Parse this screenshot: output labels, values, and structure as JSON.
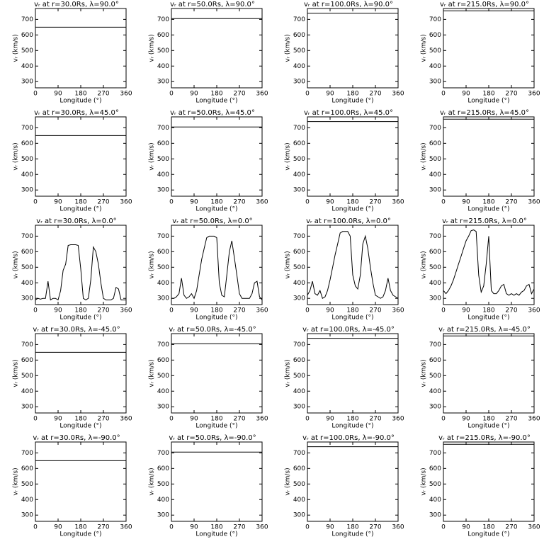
{
  "chart_data": [
    {
      "type": "line",
      "title": "vᵣ at r=30.0Rs,  λ=90.0°",
      "xlabel": "Longitude (°)",
      "ylabel": "vᵣ (km/s)",
      "x": [
        0,
        360
      ],
      "values": [
        650,
        650
      ],
      "color": "#000000",
      "xlim": [
        0,
        360
      ],
      "xticks": [
        0,
        90,
        180,
        270,
        360
      ],
      "ylim": [
        260,
        770
      ],
      "yticks": [
        300,
        400,
        500,
        600,
        700
      ]
    },
    {
      "type": "line",
      "title": "vᵣ at r=50.0Rs,  λ=90.0°",
      "xlabel": "Longitude (°)",
      "ylabel": "vᵣ (km/s)",
      "x": [
        0,
        360
      ],
      "values": [
        705,
        705
      ],
      "color": "#000000",
      "xlim": [
        0,
        360
      ],
      "xticks": [
        0,
        90,
        180,
        270,
        360
      ],
      "ylim": [
        260,
        770
      ],
      "yticks": [
        300,
        400,
        500,
        600,
        700
      ]
    },
    {
      "type": "line",
      "title": "vᵣ at r=100.0Rs,  λ=90.0°",
      "xlabel": "Longitude (°)",
      "ylabel": "vᵣ (km/s)",
      "x": [
        0,
        360
      ],
      "values": [
        740,
        740
      ],
      "color": "#000000",
      "xlim": [
        0,
        360
      ],
      "xticks": [
        0,
        90,
        180,
        270,
        360
      ],
      "ylim": [
        260,
        770
      ],
      "yticks": [
        300,
        400,
        500,
        600,
        700
      ]
    },
    {
      "type": "line",
      "title": "vᵣ at r=215.0Rs,  λ=90.0°",
      "xlabel": "Longitude (°)",
      "ylabel": "vᵣ (km/s)",
      "x": [
        0,
        360
      ],
      "values": [
        755,
        755
      ],
      "color": "#000000",
      "xlim": [
        0,
        360
      ],
      "xticks": [
        0,
        90,
        180,
        270,
        360
      ],
      "ylim": [
        260,
        770
      ],
      "yticks": [
        300,
        400,
        500,
        600,
        700
      ]
    },
    {
      "type": "line",
      "title": "vᵣ at r=30.0Rs,  λ=45.0°",
      "xlabel": "Longitude (°)",
      "ylabel": "vᵣ (km/s)",
      "x": [
        0,
        360
      ],
      "values": [
        650,
        650
      ],
      "color": "#000000",
      "xlim": [
        0,
        360
      ],
      "xticks": [
        0,
        90,
        180,
        270,
        360
      ],
      "ylim": [
        260,
        770
      ],
      "yticks": [
        300,
        400,
        500,
        600,
        700
      ]
    },
    {
      "type": "line",
      "title": "vᵣ at r=50.0Rs,  λ=45.0°",
      "xlabel": "Longitude (°)",
      "ylabel": "vᵣ (km/s)",
      "x": [
        0,
        360
      ],
      "values": [
        705,
        705
      ],
      "color": "#000000",
      "xlim": [
        0,
        360
      ],
      "xticks": [
        0,
        90,
        180,
        270,
        360
      ],
      "ylim": [
        260,
        770
      ],
      "yticks": [
        300,
        400,
        500,
        600,
        700
      ]
    },
    {
      "type": "line",
      "title": "vᵣ at r=100.0Rs,  λ=45.0°",
      "xlabel": "Longitude (°)",
      "ylabel": "vᵣ (km/s)",
      "x": [
        0,
        360
      ],
      "values": [
        740,
        740
      ],
      "color": "#000000",
      "xlim": [
        0,
        360
      ],
      "xticks": [
        0,
        90,
        180,
        270,
        360
      ],
      "ylim": [
        260,
        770
      ],
      "yticks": [
        300,
        400,
        500,
        600,
        700
      ]
    },
    {
      "type": "line",
      "title": "vᵣ at r=215.0Rs,  λ=45.0°",
      "xlabel": "Longitude (°)",
      "ylabel": "vᵣ (km/s)",
      "x": [
        0,
        360
      ],
      "values": [
        755,
        755
      ],
      "color": "#000000",
      "xlim": [
        0,
        360
      ],
      "xticks": [
        0,
        90,
        180,
        270,
        360
      ],
      "ylim": [
        260,
        770
      ],
      "yticks": [
        300,
        400,
        500,
        600,
        700
      ]
    },
    {
      "type": "line",
      "title": "vᵣ at r=30.0Rs,  λ=0.0°",
      "xlabel": "Longitude (°)",
      "ylabel": "vᵣ (km/s)",
      "x": [
        0,
        10,
        20,
        30,
        40,
        50,
        60,
        70,
        80,
        90,
        100,
        110,
        120,
        130,
        140,
        150,
        160,
        170,
        180,
        190,
        200,
        210,
        220,
        230,
        240,
        250,
        260,
        270,
        280,
        290,
        300,
        310,
        320,
        330,
        340,
        350,
        360
      ],
      "values": [
        290,
        300,
        295,
        300,
        300,
        410,
        290,
        300,
        300,
        290,
        350,
        480,
        520,
        640,
        645,
        645,
        645,
        640,
        490,
        300,
        290,
        300,
        420,
        630,
        600,
        520,
        400,
        300,
        290,
        290,
        290,
        300,
        370,
        360,
        290,
        290,
        290
      ],
      "color": "#000000",
      "xlim": [
        0,
        360
      ],
      "xticks": [
        0,
        90,
        180,
        270,
        360
      ],
      "ylim": [
        260,
        770
      ],
      "yticks": [
        300,
        400,
        500,
        600,
        700
      ]
    },
    {
      "type": "line",
      "title": "vᵣ at r=50.0Rs,  λ=0.0°",
      "xlabel": "Longitude (°)",
      "ylabel": "vᵣ (km/s)",
      "x": [
        0,
        10,
        20,
        30,
        40,
        50,
        60,
        70,
        80,
        90,
        100,
        110,
        120,
        130,
        140,
        150,
        160,
        170,
        180,
        190,
        200,
        210,
        220,
        230,
        240,
        250,
        260,
        270,
        280,
        290,
        300,
        310,
        320,
        330,
        340,
        350,
        360
      ],
      "values": [
        300,
        300,
        310,
        330,
        430,
        320,
        300,
        310,
        330,
        300,
        350,
        450,
        550,
        620,
        690,
        700,
        700,
        700,
        690,
        400,
        320,
        310,
        450,
        600,
        670,
        560,
        450,
        330,
        300,
        300,
        300,
        300,
        330,
        400,
        410,
        310,
        290
      ],
      "color": "#000000",
      "xlim": [
        0,
        360
      ],
      "xticks": [
        0,
        90,
        180,
        270,
        360
      ],
      "ylim": [
        260,
        770
      ],
      "yticks": [
        300,
        400,
        500,
        600,
        700
      ]
    },
    {
      "type": "line",
      "title": "vᵣ at r=100.0Rs,  λ=0.0°",
      "xlabel": "Longitude (°)",
      "ylabel": "vᵣ (km/s)",
      "x": [
        0,
        10,
        20,
        30,
        40,
        50,
        60,
        70,
        80,
        90,
        100,
        110,
        120,
        130,
        140,
        150,
        160,
        170,
        180,
        190,
        200,
        210,
        220,
        230,
        240,
        250,
        260,
        270,
        280,
        290,
        300,
        310,
        320,
        330,
        340,
        350,
        360
      ],
      "values": [
        320,
        350,
        410,
        330,
        320,
        350,
        300,
        310,
        350,
        420,
        500,
        580,
        650,
        720,
        730,
        730,
        730,
        700,
        450,
        380,
        360,
        450,
        650,
        700,
        620,
        500,
        400,
        320,
        310,
        300,
        310,
        350,
        430,
        350,
        320,
        310,
        300
      ],
      "color": "#000000",
      "xlim": [
        0,
        360
      ],
      "xticks": [
        0,
        90,
        180,
        270,
        360
      ],
      "ylim": [
        260,
        770
      ],
      "yticks": [
        300,
        400,
        500,
        600,
        700
      ]
    },
    {
      "type": "line",
      "title": "vᵣ at r=215.0Rs,  λ=0.0°",
      "xlabel": "Longitude (°)",
      "ylabel": "vᵣ (km/s)",
      "x": [
        0,
        10,
        20,
        30,
        40,
        50,
        60,
        70,
        80,
        90,
        100,
        110,
        120,
        130,
        140,
        150,
        160,
        170,
        180,
        190,
        200,
        210,
        220,
        230,
        240,
        250,
        260,
        270,
        280,
        290,
        300,
        310,
        320,
        330,
        340,
        350,
        360
      ],
      "values": [
        350,
        330,
        350,
        380,
        420,
        470,
        520,
        570,
        620,
        670,
        700,
        735,
        740,
        730,
        450,
        340,
        380,
        520,
        700,
        350,
        330,
        330,
        350,
        380,
        390,
        330,
        320,
        330,
        320,
        330,
        320,
        340,
        350,
        380,
        390,
        330,
        360
      ],
      "color": "#000000",
      "xlim": [
        0,
        360
      ],
      "xticks": [
        0,
        90,
        180,
        270,
        360
      ],
      "ylim": [
        260,
        770
      ],
      "yticks": [
        300,
        400,
        500,
        600,
        700
      ]
    },
    {
      "type": "line",
      "title": "vᵣ at r=30.0Rs,  λ=-45.0°",
      "xlabel": "Longitude (°)",
      "ylabel": "vᵣ (km/s)",
      "x": [
        0,
        360
      ],
      "values": [
        650,
        650
      ],
      "color": "#000000",
      "xlim": [
        0,
        360
      ],
      "xticks": [
        0,
        90,
        180,
        270,
        360
      ],
      "ylim": [
        260,
        770
      ],
      "yticks": [
        300,
        400,
        500,
        600,
        700
      ]
    },
    {
      "type": "line",
      "title": "vᵣ at r=50.0Rs,  λ=-45.0°",
      "xlabel": "Longitude (°)",
      "ylabel": "vᵣ (km/s)",
      "x": [
        0,
        360
      ],
      "values": [
        705,
        705
      ],
      "color": "#000000",
      "xlim": [
        0,
        360
      ],
      "xticks": [
        0,
        90,
        180,
        270,
        360
      ],
      "ylim": [
        260,
        770
      ],
      "yticks": [
        300,
        400,
        500,
        600,
        700
      ]
    },
    {
      "type": "line",
      "title": "vᵣ at r=100.0Rs,  λ=-45.0°",
      "xlabel": "Longitude (°)",
      "ylabel": "vᵣ (km/s)",
      "x": [
        0,
        360
      ],
      "values": [
        740,
        740
      ],
      "color": "#000000",
      "xlim": [
        0,
        360
      ],
      "xticks": [
        0,
        90,
        180,
        270,
        360
      ],
      "ylim": [
        260,
        770
      ],
      "yticks": [
        300,
        400,
        500,
        600,
        700
      ]
    },
    {
      "type": "line",
      "title": "vᵣ at r=215.0Rs,  λ=-45.0°",
      "xlabel": "Longitude (°)",
      "ylabel": "vᵣ (km/s)",
      "x": [
        0,
        360
      ],
      "values": [
        755,
        755
      ],
      "color": "#000000",
      "xlim": [
        0,
        360
      ],
      "xticks": [
        0,
        90,
        180,
        270,
        360
      ],
      "ylim": [
        260,
        770
      ],
      "yticks": [
        300,
        400,
        500,
        600,
        700
      ]
    },
    {
      "type": "line",
      "title": "vᵣ at r=30.0Rs,  λ=-90.0°",
      "xlabel": "Longitude (°)",
      "ylabel": "vᵣ (km/s)",
      "x": [
        0,
        360
      ],
      "values": [
        650,
        650
      ],
      "color": "#000000",
      "xlim": [
        0,
        360
      ],
      "xticks": [
        0,
        90,
        180,
        270,
        360
      ],
      "ylim": [
        260,
        770
      ],
      "yticks": [
        300,
        400,
        500,
        600,
        700
      ]
    },
    {
      "type": "line",
      "title": "vᵣ at r=50.0Rs,  λ=-90.0°",
      "xlabel": "Longitude (°)",
      "ylabel": "vᵣ (km/s)",
      "x": [
        0,
        360
      ],
      "values": [
        705,
        705
      ],
      "color": "#000000",
      "xlim": [
        0,
        360
      ],
      "xticks": [
        0,
        90,
        180,
        270,
        360
      ],
      "ylim": [
        260,
        770
      ],
      "yticks": [
        300,
        400,
        500,
        600,
        700
      ]
    },
    {
      "type": "line",
      "title": "vᵣ at r=100.0Rs,  λ=-90.0°",
      "xlabel": "Longitude (°)",
      "ylabel": "vᵣ (km/s)",
      "x": [
        0,
        360
      ],
      "values": [
        740,
        740
      ],
      "color": "#000000",
      "xlim": [
        0,
        360
      ],
      "xticks": [
        0,
        90,
        180,
        270,
        360
      ],
      "ylim": [
        260,
        770
      ],
      "yticks": [
        300,
        400,
        500,
        600,
        700
      ]
    },
    {
      "type": "line",
      "title": "vᵣ at r=215.0Rs,  λ=-90.0°",
      "xlabel": "Longitude (°)",
      "ylabel": "vᵣ (km/s)",
      "x": [
        0,
        360
      ],
      "values": [
        755,
        755
      ],
      "color": "#000000",
      "xlim": [
        0,
        360
      ],
      "xticks": [
        0,
        90,
        180,
        270,
        360
      ],
      "ylim": [
        260,
        770
      ],
      "yticks": [
        300,
        400,
        500,
        600,
        700
      ]
    }
  ]
}
